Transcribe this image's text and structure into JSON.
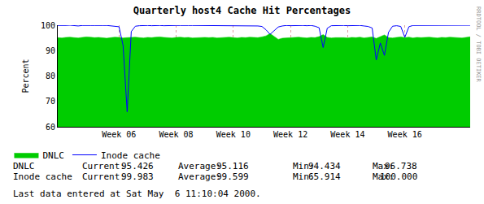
{
  "chart_data": {
    "type": "area",
    "title": "Quarterly host4 Cache Hit Percentages",
    "ylabel": "Percent",
    "categories": [
      null,
      null,
      null,
      null,
      null,
      null,
      null,
      null,
      null,
      null,
      null,
      null,
      null,
      null,
      null,
      "Week 06",
      null,
      null,
      null,
      null,
      null,
      null,
      null,
      null,
      null,
      null,
      null,
      null,
      null,
      "Week 08",
      null,
      null,
      null,
      null,
      null,
      null,
      null,
      null,
      null,
      null,
      null,
      null,
      null,
      "Week 10",
      null,
      null,
      null,
      null,
      null,
      null,
      null,
      null,
      null,
      null,
      null,
      null,
      null,
      "Week 12",
      null,
      null,
      null,
      null,
      null,
      null,
      null,
      null,
      null,
      null,
      null,
      null,
      null,
      "Week 14",
      null,
      null,
      null,
      null,
      null,
      null,
      null,
      null,
      null,
      null,
      null,
      null,
      null,
      "Week 16",
      null,
      null,
      null,
      null,
      null,
      null,
      null,
      null,
      null,
      null,
      null,
      null,
      null,
      null,
      null,
      null
    ],
    "series": [
      {
        "name": "DNLC",
        "color": "#00cc00",
        "type": "area",
        "values": [
          95.1,
          95.0,
          95.2,
          95.3,
          95.1,
          95.0,
          95.2,
          95.4,
          95.3,
          95.1,
          95.2,
          95.0,
          94.9,
          95.1,
          95.3,
          95.2,
          95.0,
          95.1,
          95.2,
          95.3,
          95.1,
          95.0,
          95.2,
          95.1,
          95.3,
          95.4,
          95.2,
          95.1,
          95.0,
          95.2,
          95.3,
          95.1,
          95.2,
          95.0,
          95.1,
          95.3,
          95.2,
          95.1,
          95.2,
          95.0,
          95.1,
          95.2,
          95.3,
          95.1,
          95.0,
          95.2,
          95.1,
          95.3,
          95.2,
          95.1,
          95.4,
          95.8,
          96.738,
          95.6,
          94.434,
          94.9,
          95.0,
          95.1,
          95.2,
          95.3,
          95.1,
          95.0,
          95.2,
          95.1,
          95.5,
          96.3,
          95.2,
          95.0,
          95.1,
          95.2,
          95.1,
          95.0,
          95.2,
          95.1,
          95.3,
          95.0,
          95.2,
          95.4,
          94.8,
          95.6,
          96.2,
          95.1,
          95.0,
          95.2,
          95.4,
          95.1,
          95.3,
          95.0,
          95.2,
          95.1,
          95.2,
          95.3,
          95.1,
          95.0,
          95.2,
          95.1,
          95.3,
          95.2,
          95.1,
          95.0,
          95.2,
          95.426
        ]
      },
      {
        "name": "Inode cache",
        "color": "#0000ff",
        "type": "line",
        "values": [
          99.9,
          99.8,
          99.9,
          100.0,
          99.9,
          99.7,
          99.9,
          99.8,
          99.9,
          99.9,
          99.8,
          99.9,
          99.9,
          99.8,
          99.7,
          99.4,
          92.0,
          65.914,
          97.5,
          99.6,
          99.8,
          99.9,
          99.9,
          99.8,
          99.9,
          99.9,
          99.8,
          99.9,
          99.9,
          99.9,
          99.9,
          99.8,
          99.9,
          99.9,
          99.9,
          99.8,
          99.9,
          99.9,
          99.9,
          99.8,
          99.9,
          99.9,
          99.8,
          99.9,
          99.9,
          99.9,
          99.8,
          99.9,
          99.9,
          99.7,
          99.5,
          98.2,
          96.4,
          97.8,
          99.3,
          99.7,
          99.9,
          99.8,
          99.9,
          99.9,
          99.9,
          99.8,
          99.9,
          99.6,
          99.0,
          91.2,
          98.8,
          99.8,
          99.9,
          99.9,
          99.9,
          99.8,
          99.9,
          99.8,
          99.9,
          99.7,
          99.5,
          98.9,
          86.3,
          93.0,
          88.1,
          97.2,
          99.6,
          99.8,
          99.5,
          95.2,
          99.4,
          99.9,
          99.9,
          99.8,
          99.9,
          99.9,
          99.8,
          99.9,
          99.9,
          99.9,
          99.8,
          99.9,
          99.9,
          99.9,
          99.9,
          99.983
        ]
      }
    ],
    "ylim": [
      60,
      100
    ],
    "yticks": [
      60,
      70,
      80,
      90,
      100
    ],
    "grid": true,
    "legend": "bottom",
    "stats": {
      "labels": [
        "Current:",
        "Average:",
        "Min:",
        "Max:"
      ],
      "rows": [
        {
          "name": "DNLC",
          "values": [
            "95.426",
            "95.116",
            "94.434",
            "96.738"
          ]
        },
        {
          "name": "Inode cache",
          "values": [
            "99.983",
            "99.599",
            "65.914",
            "100.000"
          ]
        }
      ]
    },
    "footer": "Last data entered at Sat May  6 11:10:04 2000.",
    "side_text": "RRDTOOL / TOBI OETIKER"
  }
}
